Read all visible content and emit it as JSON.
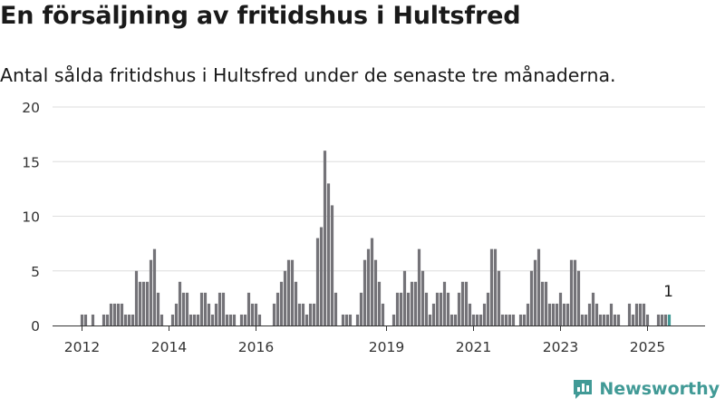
{
  "title": "En försäljning av fritidshus i Hultsfred",
  "subtitle": "Antal sålda fritidshus i Hultsfred under de senaste tre månaderna.",
  "brand": {
    "name": "Newsworthy",
    "color": "#419a96"
  },
  "chart_data": {
    "type": "bar",
    "title": "",
    "xlabel": "",
    "ylabel": "",
    "ylim": [
      0,
      20
    ],
    "yticks": [
      "0",
      "5",
      "10",
      "15",
      "20"
    ],
    "x_start": "2012-01",
    "x_end": "2025-07",
    "x_ticks": [
      {
        "label": "2012",
        "date": "2012-01"
      },
      {
        "label": "2014",
        "date": "2014-01"
      },
      {
        "label": "2016",
        "date": "2016-01"
      },
      {
        "label": "2019",
        "date": "2019-01"
      },
      {
        "label": "2021",
        "date": "2021-01"
      },
      {
        "label": "2023",
        "date": "2023-01"
      },
      {
        "label": "2025",
        "date": "2025-01"
      }
    ],
    "grid": true,
    "bar_color": "#747378",
    "highlight_color": "#419a96",
    "highlight_label": "1",
    "series": [
      {
        "values": [
          1,
          1,
          0,
          1,
          0,
          0,
          1,
          1,
          2,
          2,
          2,
          2,
          1,
          1,
          1,
          5,
          4,
          4,
          4,
          6,
          7,
          3,
          1,
          0,
          0,
          1,
          2,
          4,
          3,
          3,
          1,
          1,
          1,
          3,
          3,
          2,
          1,
          2,
          3,
          3,
          1,
          1,
          1,
          0,
          1,
          1,
          3,
          2,
          2,
          1,
          0,
          0,
          0,
          2,
          3,
          4,
          5,
          6,
          6,
          4,
          2,
          2,
          1,
          2,
          2,
          8,
          9,
          16,
          13,
          11,
          3,
          0,
          1,
          1,
          1,
          0,
          1,
          3,
          6,
          7,
          8,
          6,
          4,
          2,
          0,
          0,
          1,
          3,
          3,
          5,
          3,
          4,
          4,
          7,
          5,
          3,
          1,
          2,
          3,
          3,
          4,
          3,
          1,
          1,
          3,
          4,
          4,
          2,
          1,
          1,
          1,
          2,
          3,
          7,
          7,
          5,
          1,
          1,
          1,
          1,
          0,
          1,
          1,
          2,
          5,
          6,
          7,
          4,
          4,
          2,
          2,
          2,
          3,
          2,
          2,
          6,
          6,
          5,
          1,
          1,
          2,
          3,
          2,
          1,
          1,
          1,
          2,
          1,
          1,
          0,
          0,
          2,
          1,
          2,
          2,
          2,
          1,
          0,
          0,
          1,
          1,
          1,
          1
        ]
      }
    ]
  }
}
